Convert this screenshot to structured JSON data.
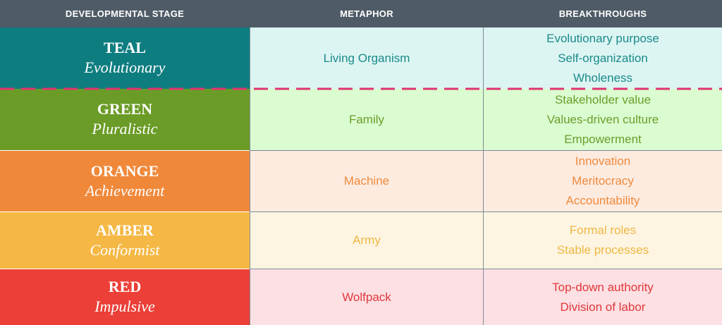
{
  "headers": {
    "stage": "DEVELOPMENTAL STAGE",
    "metaphor": "METAPHOR",
    "breakthroughs": "BREAKTHROUGHS"
  },
  "rows": [
    {
      "stage": "TEAL",
      "subtitle": "Evolutionary",
      "metaphor": "Living Organism",
      "breakthroughs": [
        "Evolutionary purpose",
        "Self-organization",
        "Wholeness"
      ],
      "colors": {
        "stage_bg": "#0e7d80",
        "cell_bg": "#dcf5f3",
        "text": "#1b8a8a"
      }
    },
    {
      "stage": "GREEN",
      "subtitle": "Pluralistic",
      "metaphor": "Family",
      "breakthroughs": [
        "Stakeholder value",
        "Values-driven culture",
        "Empowerment"
      ],
      "colors": {
        "stage_bg": "#6b9c27",
        "cell_bg": "#dbfbd0",
        "text": "#6d9e2b"
      }
    },
    {
      "stage": "ORANGE",
      "subtitle": "Achievement",
      "metaphor": "Machine",
      "breakthroughs": [
        "Innovation",
        "Meritocracy",
        "Accountability"
      ],
      "colors": {
        "stage_bg": "#f0883a",
        "cell_bg": "#fdebe0",
        "text": "#ef8a3d"
      }
    },
    {
      "stage": "AMBER",
      "subtitle": "Conformist",
      "metaphor": "Army",
      "breakthroughs": [
        "Formal roles",
        "Stable processes"
      ],
      "colors": {
        "stage_bg": "#f5b844",
        "cell_bg": "#fdf5e1",
        "text": "#efb744"
      }
    },
    {
      "stage": "RED",
      "subtitle": "Impulsive",
      "metaphor": "Wolfpack",
      "breakthroughs": [
        "Top-down authority",
        "Division of labor"
      ],
      "colors": {
        "stage_bg": "#eb3f37",
        "cell_bg": "#fde0e4",
        "text": "#e0383a"
      }
    }
  ],
  "divider_color": "#e0336f"
}
